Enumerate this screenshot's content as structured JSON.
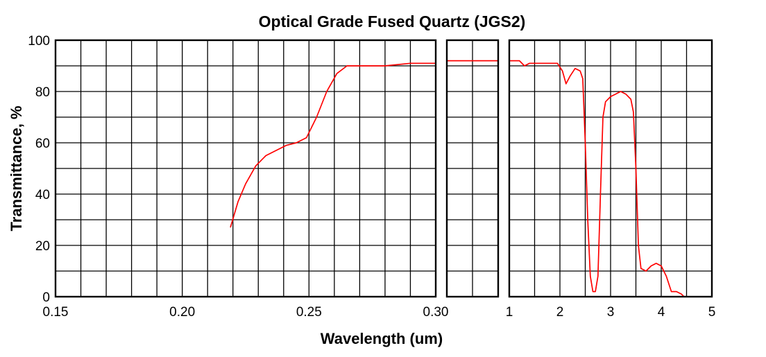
{
  "chart_data": {
    "type": "line",
    "title": "Optical Grade Fused Quartz  (JGS2)",
    "xlabel": "Wavelength (um)",
    "ylabel": "Transmittance, %",
    "ylim": [
      0,
      100
    ],
    "yticks": [
      "0",
      "20",
      "40",
      "60",
      "80",
      "100"
    ],
    "grid": true,
    "line_color": "#ff0000",
    "panels": [
      {
        "xlim": [
          0.15,
          0.3
        ],
        "xticks": [
          {
            "value": 0.15,
            "label": "0.15"
          },
          {
            "value": 0.2,
            "label": "0.20"
          },
          {
            "value": 0.25,
            "label": "0.25"
          },
          {
            "value": 0.3,
            "label": "0.30"
          }
        ],
        "points": [
          [
            0.219,
            27
          ],
          [
            0.222,
            37
          ],
          [
            0.225,
            44
          ],
          [
            0.229,
            51
          ],
          [
            0.233,
            55
          ],
          [
            0.237,
            57
          ],
          [
            0.241,
            59
          ],
          [
            0.245,
            60
          ],
          [
            0.249,
            62
          ],
          [
            0.253,
            70
          ],
          [
            0.257,
            80
          ],
          [
            0.261,
            87
          ],
          [
            0.265,
            90
          ],
          [
            0.27,
            90
          ],
          [
            0.28,
            90
          ],
          [
            0.29,
            91
          ],
          [
            0.3,
            91
          ]
        ]
      },
      {
        "xlim": [
          0.3,
          1.0
        ],
        "xticks": [],
        "points": [
          [
            0.3,
            92
          ],
          [
            1.0,
            92
          ]
        ]
      },
      {
        "xlim": [
          1,
          5
        ],
        "xticks": [
          {
            "value": 1,
            "label": "1"
          },
          {
            "value": 2,
            "label": "2"
          },
          {
            "value": 3,
            "label": "3"
          },
          {
            "value": 4,
            "label": "4"
          },
          {
            "value": 5,
            "label": "5"
          }
        ],
        "points": [
          [
            1.0,
            92
          ],
          [
            1.2,
            92
          ],
          [
            1.3,
            90
          ],
          [
            1.4,
            91
          ],
          [
            1.6,
            91
          ],
          [
            1.8,
            91
          ],
          [
            1.95,
            91
          ],
          [
            2.05,
            88
          ],
          [
            2.12,
            83
          ],
          [
            2.2,
            86
          ],
          [
            2.3,
            89
          ],
          [
            2.4,
            88
          ],
          [
            2.45,
            85
          ],
          [
            2.5,
            60
          ],
          [
            2.55,
            30
          ],
          [
            2.6,
            8
          ],
          [
            2.65,
            2
          ],
          [
            2.7,
            2
          ],
          [
            2.75,
            8
          ],
          [
            2.8,
            40
          ],
          [
            2.85,
            70
          ],
          [
            2.9,
            76
          ],
          [
            3.0,
            78
          ],
          [
            3.1,
            79
          ],
          [
            3.2,
            80
          ],
          [
            3.3,
            79
          ],
          [
            3.4,
            77
          ],
          [
            3.45,
            72
          ],
          [
            3.5,
            50
          ],
          [
            3.55,
            20
          ],
          [
            3.6,
            11
          ],
          [
            3.7,
            10
          ],
          [
            3.8,
            12
          ],
          [
            3.9,
            13
          ],
          [
            4.0,
            12
          ],
          [
            4.1,
            8
          ],
          [
            4.2,
            2
          ],
          [
            4.3,
            2
          ],
          [
            4.4,
            1
          ],
          [
            4.45,
            0
          ]
        ]
      }
    ]
  }
}
